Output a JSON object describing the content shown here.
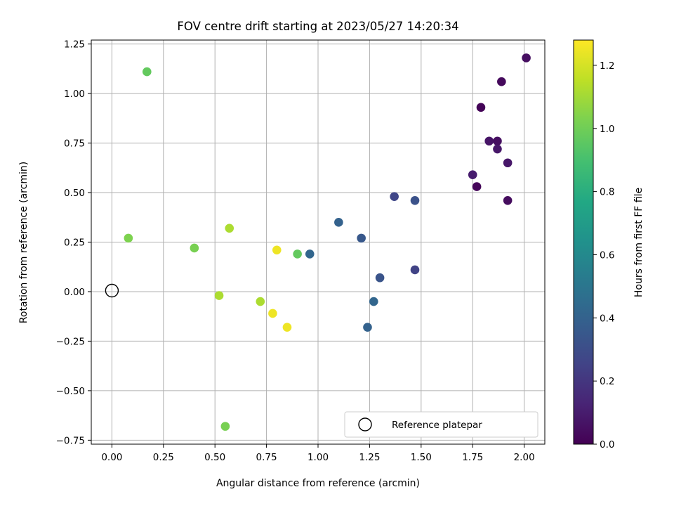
{
  "chart_data": {
    "type": "scatter",
    "title": "FOV centre drift starting at 2023/05/27 14:20:34",
    "xlabel": "Angular distance from reference (arcmin)",
    "ylabel": "Rotation from reference (arcmin)",
    "xlim": [
      -0.1,
      2.1
    ],
    "ylim": [
      -0.77,
      1.27
    ],
    "x_ticks": [
      0.0,
      0.25,
      0.5,
      0.75,
      1.0,
      1.25,
      1.5,
      1.75,
      2.0
    ],
    "x_tick_labels": [
      "0.00",
      "0.25",
      "0.50",
      "0.75",
      "1.00",
      "1.25",
      "1.50",
      "1.75",
      "2.00"
    ],
    "y_ticks": [
      -0.75,
      -0.5,
      -0.25,
      0.0,
      0.25,
      0.5,
      0.75,
      1.0,
      1.25
    ],
    "y_tick_labels": [
      "−0.75",
      "−0.50",
      "−0.25",
      "0.00",
      "0.25",
      "0.50",
      "0.75",
      "1.00",
      "1.25"
    ],
    "grid": true,
    "colorbar": {
      "label": "Hours from first FF file",
      "colormap": "viridis",
      "range": [
        0,
        1.28
      ],
      "ticks": [
        0.0,
        0.2,
        0.4,
        0.6,
        0.8,
        1.0,
        1.2
      ],
      "tick_labels": [
        "0.0",
        "0.2",
        "0.4",
        "0.6",
        "0.8",
        "1.0",
        "1.2"
      ]
    },
    "legend": {
      "placement": "lower right",
      "entries": [
        {
          "label": "Reference platepar",
          "marker": "open-circle"
        }
      ]
    },
    "reference_point": {
      "x": 0.0,
      "y": 0.0
    },
    "points": [
      {
        "x": 2.01,
        "y": 1.18,
        "hours": 0.05
      },
      {
        "x": 1.89,
        "y": 1.06,
        "hours": 0.03
      },
      {
        "x": 1.79,
        "y": 0.93,
        "hours": 0.01
      },
      {
        "x": 1.83,
        "y": 0.76,
        "hours": 0.07
      },
      {
        "x": 1.87,
        "y": 0.76,
        "hours": 0.05
      },
      {
        "x": 1.87,
        "y": 0.72,
        "hours": 0.08
      },
      {
        "x": 1.92,
        "y": 0.65,
        "hours": 0.08
      },
      {
        "x": 1.75,
        "y": 0.59,
        "hours": 0.1
      },
      {
        "x": 1.77,
        "y": 0.53,
        "hours": 0.02
      },
      {
        "x": 1.92,
        "y": 0.46,
        "hours": 0.04
      },
      {
        "x": 1.37,
        "y": 0.48,
        "hours": 0.27
      },
      {
        "x": 1.47,
        "y": 0.46,
        "hours": 0.32
      },
      {
        "x": 1.47,
        "y": 0.11,
        "hours": 0.25
      },
      {
        "x": 1.1,
        "y": 0.35,
        "hours": 0.4
      },
      {
        "x": 1.21,
        "y": 0.27,
        "hours": 0.35
      },
      {
        "x": 1.3,
        "y": 0.07,
        "hours": 0.33
      },
      {
        "x": 1.27,
        "y": -0.05,
        "hours": 0.42
      },
      {
        "x": 1.24,
        "y": -0.18,
        "hours": 0.4
      },
      {
        "x": 0.96,
        "y": 0.19,
        "hours": 0.42
      },
      {
        "x": 0.9,
        "y": 0.19,
        "hours": 0.97
      },
      {
        "x": 0.8,
        "y": 0.21,
        "hours": 1.25
      },
      {
        "x": 0.57,
        "y": 0.32,
        "hours": 1.12
      },
      {
        "x": 0.4,
        "y": 0.22,
        "hours": 1.02
      },
      {
        "x": 0.08,
        "y": 0.27,
        "hours": 1.03
      },
      {
        "x": 0.17,
        "y": 1.11,
        "hours": 0.97
      },
      {
        "x": 0.52,
        "y": -0.02,
        "hours": 1.12
      },
      {
        "x": 0.72,
        "y": -0.05,
        "hours": 1.12
      },
      {
        "x": 0.78,
        "y": -0.11,
        "hours": 1.25
      },
      {
        "x": 0.85,
        "y": -0.18,
        "hours": 1.25
      },
      {
        "x": 0.55,
        "y": -0.68,
        "hours": 1.02
      }
    ]
  }
}
